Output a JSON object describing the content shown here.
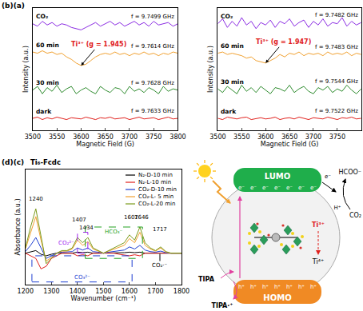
{
  "chart_data": [
    {
      "type": "line",
      "panel_label": "(b)(a)",
      "x_label": "Magnetic Field (G)",
      "y_label": "Intensity (a.u.)",
      "grid": false,
      "tick_labels": "x",
      "x": [
        3500,
        3510,
        3520,
        3530,
        3540,
        3550,
        3560,
        3570,
        3580,
        3590,
        3600,
        3610,
        3620,
        3630,
        3640,
        3650,
        3660,
        3670,
        3680,
        3690,
        3700,
        3710,
        3720,
        3730,
        3740,
        3750,
        3760,
        3770,
        3780,
        3790,
        3800
      ],
      "xlim": [
        3500,
        3800
      ],
      "xticks": [
        3500,
        3550,
        3600,
        3650,
        3700,
        3750,
        3800
      ],
      "ylim": [
        0,
        10
      ],
      "series": [
        {
          "name": "CO₂",
          "color": "#8a2be2",
          "frequency": "f = 9.7499 GHz",
          "values": [
            8.7,
            8.5,
            8.9,
            8.6,
            8.8,
            8.5,
            8.7,
            8.6,
            8.4,
            8.3,
            8.2,
            8.4,
            8.6,
            8.8,
            8.5,
            8.7,
            8.9,
            8.6,
            8.8,
            8.5,
            8.7,
            8.9,
            8.6,
            8.8,
            8.5,
            8.9,
            8.6,
            8.7,
            8.8,
            8.5,
            8.7
          ]
        },
        {
          "name": "60 min",
          "color": "#f0a030",
          "frequency": "f = 9.7614 GHz",
          "values": [
            6.4,
            6.3,
            6.5,
            6.3,
            6.4,
            6.2,
            6.3,
            6.0,
            5.8,
            5.5,
            5.3,
            5.4,
            5.7,
            6.0,
            6.2,
            6.3,
            6.2,
            6.4,
            6.2,
            6.3,
            6.1,
            6.3,
            6.2,
            6.4,
            6.2,
            6.3,
            6.1,
            6.3,
            6.2,
            6.4,
            6.3
          ]
        },
        {
          "name": "30 min",
          "color": "#2e8b2e",
          "frequency": "f = 9.7628 GHz",
          "values": [
            3.3,
            3.6,
            3.0,
            3.5,
            3.2,
            3.7,
            3.1,
            3.4,
            3.6,
            3.0,
            3.3,
            3.5,
            3.2,
            3.0,
            3.6,
            3.3,
            3.1,
            3.5,
            3.4,
            3.0,
            3.6,
            3.2,
            3.4,
            3.1,
            3.5,
            3.3,
            3.0,
            3.6,
            3.2,
            3.4,
            3.3
          ]
        },
        {
          "name": "dark",
          "color": "#e0201c",
          "frequency": "f = 9.7633 GHz",
          "values": [
            1.0,
            1.1,
            0.9,
            1.05,
            0.95,
            1.1,
            1.0,
            0.9,
            1.05,
            1.0,
            0.95,
            1.1,
            1.0,
            0.9,
            1.05,
            1.0,
            1.1,
            0.95,
            1.0,
            1.05,
            0.9,
            1.0,
            1.1,
            0.95,
            1.0,
            1.05,
            0.9,
            1.0,
            1.1,
            0.95,
            1.0
          ]
        }
      ],
      "annotation": {
        "text": "Ti³⁺ (g = 1.945)",
        "x": 3600,
        "y": 5.3,
        "color": "#e0201c"
      }
    },
    {
      "type": "line",
      "x_label": "Magnetic Field (G)",
      "y_label": "Intensity (a.u.)",
      "grid": false,
      "tick_labels": "x",
      "x": [
        3500,
        3510,
        3520,
        3530,
        3540,
        3550,
        3560,
        3570,
        3580,
        3590,
        3600,
        3610,
        3620,
        3630,
        3640,
        3650,
        3660,
        3670,
        3680,
        3690,
        3700,
        3710,
        3720,
        3730,
        3740,
        3750,
        3760,
        3770,
        3780,
        3790,
        3800
      ],
      "xlim": [
        3500,
        3800
      ],
      "xticks": [
        3500,
        3550,
        3600,
        3650,
        3700,
        3750,
        3800
      ],
      "ylim": [
        0,
        10
      ],
      "series": [
        {
          "name": "CO₂",
          "color": "#8a2be2",
          "frequency": "f = 9.7482 GHz",
          "values": [
            8.7,
            9.1,
            8.4,
            8.9,
            8.5,
            9.2,
            8.6,
            8.9,
            8.3,
            8.8,
            8.6,
            9.0,
            8.4,
            8.9,
            8.7,
            9.1,
            8.5,
            8.8,
            9.0,
            8.4,
            8.9,
            8.6,
            9.1,
            8.5,
            8.8,
            8.7,
            9.2,
            8.5,
            8.9,
            8.6,
            8.8
          ]
        },
        {
          "name": "60 min",
          "color": "#f0a030",
          "frequency": "f = 9.7483 GHz",
          "values": [
            6.3,
            6.4,
            6.2,
            6.3,
            6.2,
            6.1,
            5.9,
            6.0,
            5.7,
            5.6,
            5.5,
            5.7,
            5.9,
            6.2,
            6.0,
            6.3,
            6.2,
            6.4,
            6.1,
            6.3,
            6.2,
            6.3,
            6.1,
            6.4,
            6.2,
            6.3,
            6.2,
            6.4,
            6.1,
            6.3,
            6.2
          ]
        },
        {
          "name": "30 min",
          "color": "#2e8b2e",
          "frequency": "f = 9.7544 GHz",
          "values": [
            3.4,
            3.1,
            3.6,
            3.3,
            3.0,
            3.7,
            3.2,
            3.5,
            3.1,
            3.6,
            3.3,
            3.0,
            3.5,
            3.4,
            3.2,
            3.7,
            3.1,
            3.4,
            3.6,
            3.2,
            3.0,
            3.5,
            3.3,
            3.6,
            3.1,
            3.4,
            3.2,
            3.7,
            3.3,
            3.0,
            3.4
          ]
        },
        {
          "name": "dark",
          "color": "#e0201c",
          "frequency": "f = 9.7522 GHz",
          "values": [
            1.0,
            0.9,
            1.1,
            1.0,
            0.95,
            1.05,
            1.1,
            0.9,
            1.0,
            1.05,
            0.95,
            1.0,
            1.1,
            0.9,
            1.0,
            1.05,
            0.95,
            1.1,
            1.0,
            0.9,
            1.05,
            1.0,
            0.95,
            1.1,
            1.0,
            0.9,
            1.05,
            1.0,
            1.1,
            0.95,
            1.0
          ]
        }
      ],
      "annotation": {
        "text": "Ti³⁺ (g = 1.947)",
        "x": 3600,
        "y": 5.5,
        "color": "#e0201c"
      }
    },
    {
      "type": "line",
      "panel_label": "(d)(c)",
      "title": "Ti₆-Fcdc",
      "x_label": "Wavenumber (cm⁻¹)",
      "y_label": "Absorbance (a.u.)",
      "grid": false,
      "tick_labels": "x",
      "legend": "upper right",
      "x": [
        1200,
        1220,
        1240,
        1260,
        1280,
        1300,
        1320,
        1340,
        1360,
        1380,
        1400,
        1420,
        1440,
        1460,
        1480,
        1500,
        1520,
        1540,
        1560,
        1580,
        1600,
        1620,
        1640,
        1660,
        1680,
        1700,
        1720,
        1740,
        1760,
        1780,
        1800
      ],
      "xlim": [
        1200,
        1800
      ],
      "xticks": [
        1200,
        1300,
        1400,
        1500,
        1600,
        1700,
        1800
      ],
      "ylim": [
        -0.6,
        1.6
      ],
      "series": [
        {
          "name": "N₂-D-10 min",
          "color": "#000000",
          "values": [
            0.0,
            0.02,
            0.05,
            -0.02,
            -0.05,
            -0.02,
            0.0,
            0.0,
            0.0,
            0.0,
            0.02,
            0.01,
            0.02,
            0.0,
            0.0,
            0.0,
            0.0,
            0.0,
            0.01,
            0.01,
            0.02,
            0.01,
            0.02,
            0.0,
            0.0,
            0.0,
            0.0,
            0.0,
            0.0,
            0.0,
            0.0
          ]
        },
        {
          "name": "N₂-L-10 min",
          "color": "#e0201c",
          "values": [
            0.0,
            -0.05,
            -0.1,
            -0.3,
            -0.25,
            -0.1,
            -0.05,
            0.0,
            0.0,
            0.0,
            -0.05,
            -0.03,
            -0.05,
            0.0,
            0.0,
            0.0,
            0.0,
            0.0,
            -0.02,
            -0.03,
            -0.05,
            -0.03,
            -0.05,
            0.0,
            0.0,
            0.0,
            0.0,
            0.0,
            0.0,
            0.0,
            0.0
          ]
        },
        {
          "name": "CO₂-D-10 min",
          "color": "#1f3fd1",
          "values": [
            0.03,
            0.15,
            0.3,
            0.1,
            -0.1,
            -0.05,
            0.0,
            0.02,
            0.02,
            0.03,
            0.1,
            0.06,
            0.1,
            0.03,
            0.02,
            0.0,
            0.02,
            0.03,
            0.05,
            0.06,
            0.12,
            0.08,
            0.15,
            0.06,
            0.03,
            0.02,
            0.04,
            0.01,
            0.0,
            0.0,
            0.0
          ]
        },
        {
          "name": "CO₂-L- 5 min",
          "color": "#f0a030",
          "values": [
            0.08,
            0.4,
            0.7,
            0.25,
            -0.15,
            -0.08,
            0.0,
            0.04,
            0.04,
            0.08,
            0.25,
            0.15,
            0.22,
            0.08,
            0.04,
            0.0,
            0.04,
            0.08,
            0.12,
            0.15,
            0.28,
            0.2,
            0.4,
            0.15,
            0.08,
            0.04,
            0.1,
            0.02,
            0.0,
            0.0,
            0.0
          ]
        },
        {
          "name": "CO₂-L-20 min",
          "color": "#7a9a1a",
          "values": [
            0.1,
            0.5,
            0.85,
            0.3,
            -0.2,
            -0.1,
            0.0,
            0.05,
            0.05,
            0.1,
            0.3,
            0.2,
            0.3,
            0.1,
            0.05,
            0.0,
            0.05,
            0.1,
            0.15,
            0.2,
            0.35,
            0.25,
            0.5,
            0.2,
            0.1,
            0.05,
            0.12,
            0.03,
            0.0,
            0.0,
            0.0
          ]
        }
      ],
      "peak_labels": [
        1240,
        1407,
        1434,
        1607,
        1646,
        1717
      ],
      "regions": [
        {
          "label": "CO₃²⁻",
          "color": "#1f3fd1",
          "x0": 1225,
          "x1": 1610,
          "y0": -0.55,
          "y1": -0.05
        },
        {
          "label": "CO₂²⁻",
          "color": "#a020f0",
          "x0": 1400,
          "x1": 1440,
          "y0": 0.0,
          "y1": 0.4
        },
        {
          "label": "HCO₃⁻",
          "color": "#22a020",
          "x0": 1430,
          "x1": 1650,
          "y0": -0.1,
          "y1": 0.5
        },
        {
          "label": "CO₂·⁻",
          "color": "#000000",
          "x0": 1717,
          "x1": 1717,
          "y0": -0.15,
          "y1": 0.1
        }
      ]
    }
  ],
  "diagram": {
    "lumo": "LUMO",
    "homo": "HOMO",
    "electron": "e⁻",
    "hole": "h⁺",
    "ti3": "Ti³⁺",
    "ti4": "Ti⁴⁺",
    "product": "HCOO⁻",
    "reactant": "CO₂",
    "proton": "H⁺",
    "donor": "TIPA",
    "donor_oxidized": "TIPA·⁺"
  }
}
